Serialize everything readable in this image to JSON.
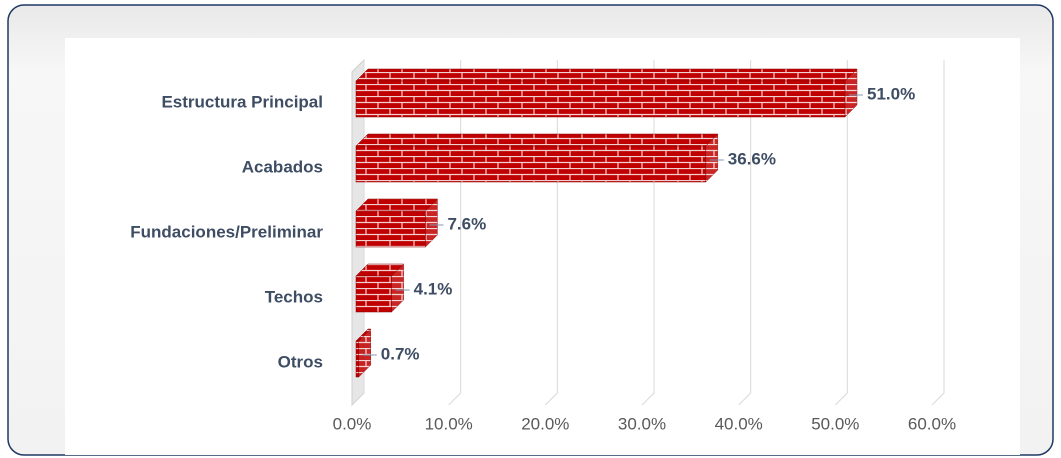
{
  "chart_data": {
    "type": "bar",
    "orientation": "horizontal",
    "categories": [
      "Estructura Principal",
      "Acabados",
      "Fundaciones/Preliminar",
      "Techos",
      "Otros"
    ],
    "values": [
      51.0,
      36.6,
      7.6,
      4.1,
      0.7
    ],
    "value_labels": [
      "51.0%",
      "36.6%",
      "7.6%",
      "4.1%",
      "0.7%"
    ],
    "color": "#c00000",
    "xlim": [
      0,
      60
    ],
    "xticks": [
      {
        "value": 0,
        "label": "0.0%"
      },
      {
        "value": 10,
        "label": "10.0%"
      },
      {
        "value": 20,
        "label": "20.0%"
      },
      {
        "value": 30,
        "label": "30.0%"
      },
      {
        "value": 40,
        "label": "40.0%"
      },
      {
        "value": 50,
        "label": "50.0%"
      },
      {
        "value": 60,
        "label": "60.0%"
      }
    ],
    "grid": true
  }
}
